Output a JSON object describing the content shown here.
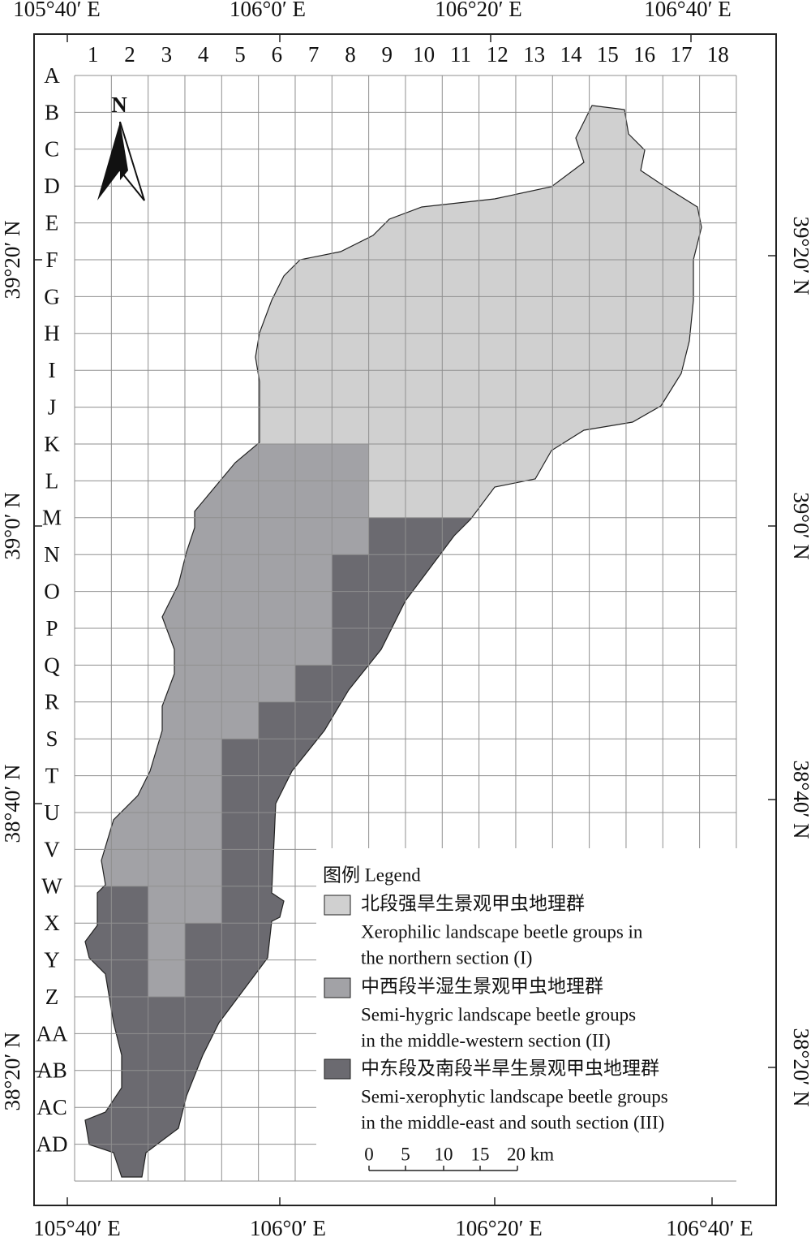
{
  "coordinates": {
    "top": [
      "105°40′ E",
      "106°0′ E",
      "106°20′ E",
      "106°40′ E"
    ],
    "bottom": [
      "105°40′ E",
      "106°0′ E",
      "106°20′ E",
      "106°40′ E"
    ],
    "left": [
      "39°20′ N",
      "39°0′ N",
      "38°40′ N",
      "38°20′ N"
    ],
    "right": [
      "39°20′ N",
      "39°0′ N",
      "38°40′ N",
      "38°20′ N"
    ]
  },
  "grid": {
    "columns": [
      "1",
      "2",
      "3",
      "4",
      "5",
      "6",
      "7",
      "8",
      "9",
      "10",
      "11",
      "12",
      "13",
      "14",
      "15",
      "16",
      "17",
      "18"
    ],
    "rows": [
      "A",
      "B",
      "C",
      "D",
      "E",
      "F",
      "G",
      "H",
      "I",
      "J",
      "K",
      "L",
      "M",
      "N",
      "O",
      "P",
      "Q",
      "R",
      "S",
      "T",
      "U",
      "V",
      "W",
      "X",
      "Y",
      "Z",
      "AA",
      "AB",
      "AC",
      "AD"
    ]
  },
  "north": "N",
  "legend": {
    "title": "图例 Legend",
    "items": [
      {
        "zh": "北段强旱生景观甲虫地理群",
        "en": [
          "Xerophilic landscape beetle groups in",
          "the northern section (I)"
        ]
      },
      {
        "zh": "中西段半湿生景观甲虫地理群",
        "en": [
          "Semi-hygric landscape beetle groups",
          "in the middle-western section (II)"
        ]
      },
      {
        "zh": "中东段及南段半旱生景观甲虫地理群",
        "en": [
          "Semi-xerophytic landscape beetle groups",
          "in the middle-east and south section (III)"
        ]
      }
    ]
  },
  "scale": [
    "0",
    "5",
    "10",
    "15",
    "20 km"
  ]
}
